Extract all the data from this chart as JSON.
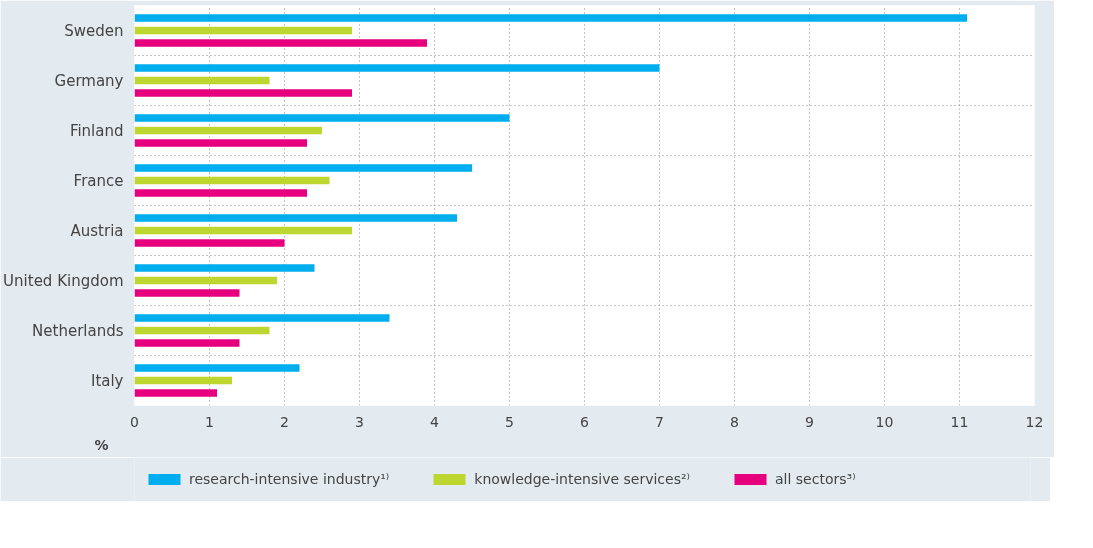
{
  "chart_data": {
    "type": "bar",
    "orientation": "horizontal",
    "xlabel": "%",
    "categories": [
      "Sweden",
      "Germany",
      "Finland",
      "France",
      "Austria",
      "United Kingdom",
      "Netherlands",
      "Italy"
    ],
    "series": [
      {
        "name": "research-intensive industry¹⁾",
        "color": "#00aeef",
        "values": [
          11.1,
          7.0,
          5.0,
          4.5,
          4.3,
          2.4,
          3.4,
          2.2
        ]
      },
      {
        "name": "knowledge-intensive services²⁾",
        "color": "#bed630",
        "values": [
          2.9,
          1.8,
          2.5,
          2.6,
          2.9,
          1.9,
          1.8,
          1.3
        ]
      },
      {
        "name": "all sectors³⁾",
        "color": "#e6007e",
        "values": [
          3.9,
          2.9,
          2.3,
          2.3,
          2.0,
          1.4,
          1.4,
          1.1
        ]
      }
    ],
    "xlim": [
      0,
      12
    ],
    "xticks": [
      0,
      1,
      2,
      3,
      4,
      5,
      6,
      7,
      8,
      9,
      10,
      11,
      12
    ],
    "grid": true,
    "legend": "bottom"
  }
}
